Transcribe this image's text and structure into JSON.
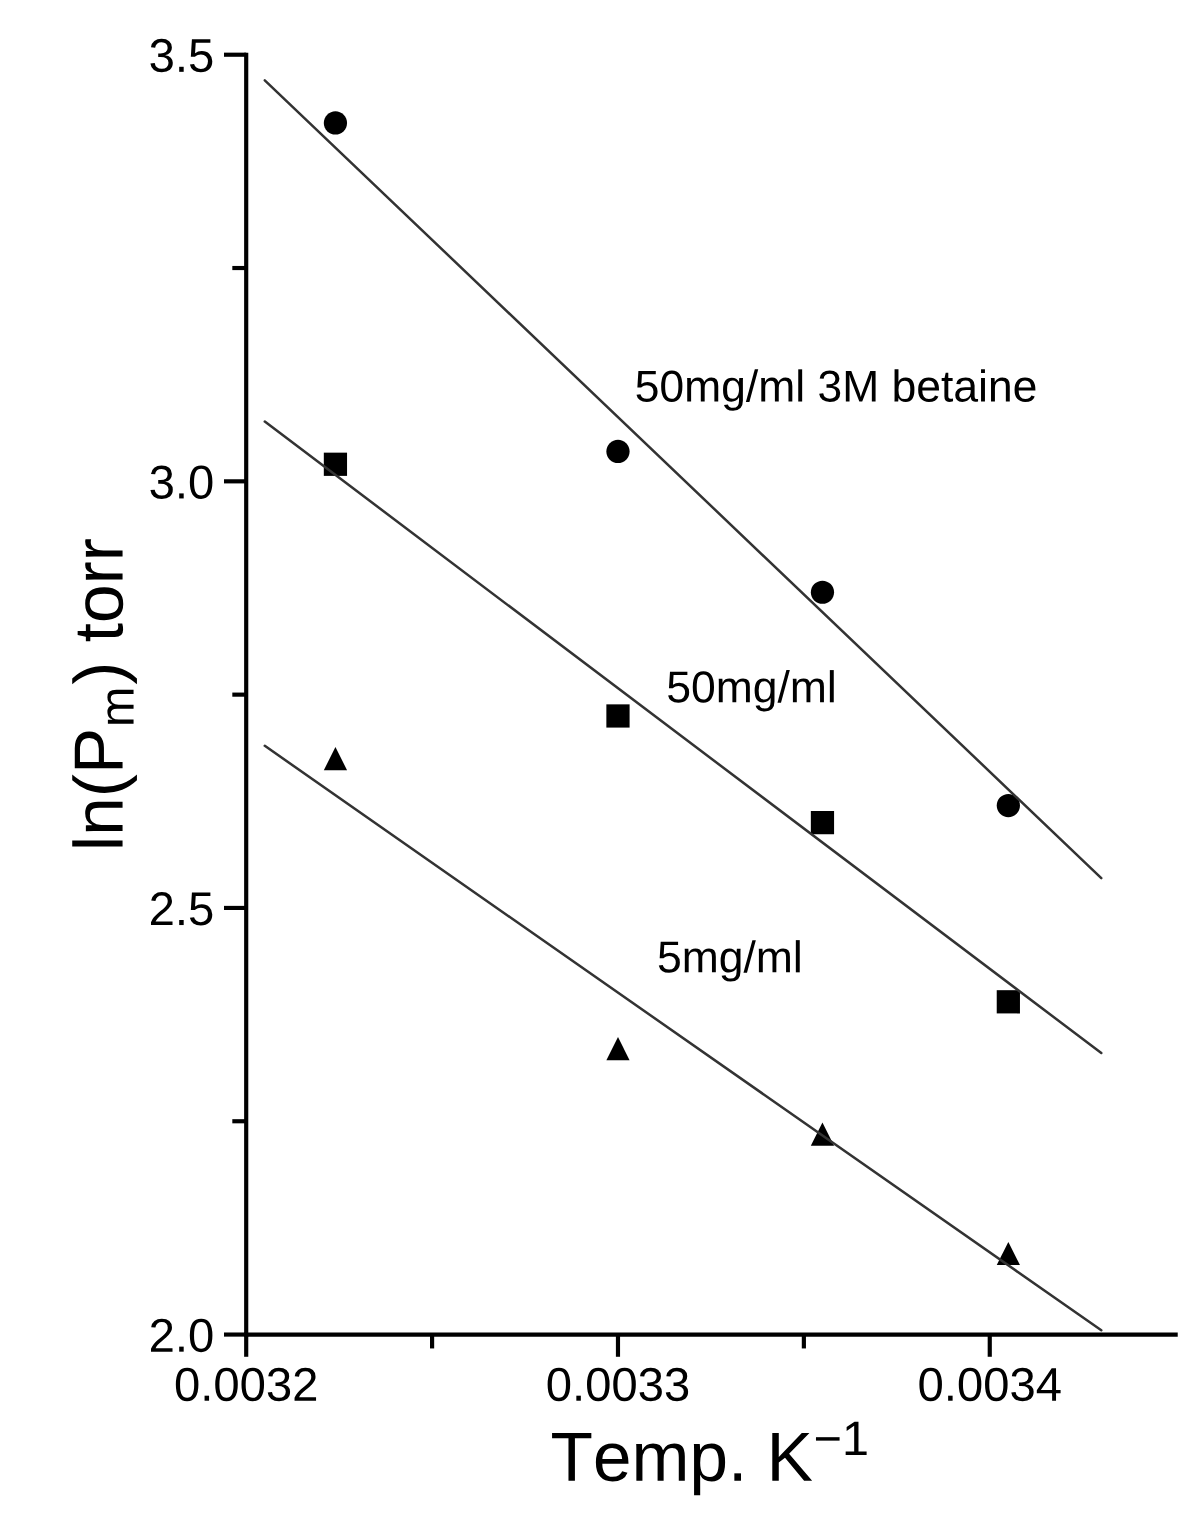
{
  "chart_data": {
    "type": "scatter",
    "xlabel": "Temp. K$^{−1}$",
    "ylabel": "ln(P$_{m}$) torr",
    "xlim": [
      0.0032,
      0.00345
    ],
    "ylim": [
      2.0,
      3.5
    ],
    "xticks": [
      0.0032,
      {
        "value": 0.00325,
        "label": null
      },
      0.0033,
      {
        "value": 0.00335,
        "label": null
      },
      0.0034
    ],
    "yticks": [
      {
        "value": 2.0,
        "label": "2.0"
      },
      {
        "value": 2.25,
        "label": null
      },
      {
        "value": 2.5,
        "label": "2.5"
      },
      {
        "value": 2.75,
        "label": null
      },
      {
        "value": 3.0,
        "label": "3.0"
      },
      {
        "value": 3.25,
        "label": null
      },
      {
        "value": 3.5,
        "label": "3.5"
      }
    ],
    "grid": false,
    "legend": false,
    "series": [
      {
        "marker": "circle",
        "color": "#000000",
        "x": [
          0.003224,
          0.0033,
          0.003355,
          0.003405
        ],
        "values": [
          3.42,
          3.035,
          2.87,
          2.62
        ]
      },
      {
        "marker": "square",
        "color": "#000000",
        "x": [
          0.003224,
          0.0033,
          0.003355,
          0.003405
        ],
        "values": [
          3.02,
          2.725,
          2.6,
          2.39
        ]
      },
      {
        "marker": "triangle",
        "color": "#000000",
        "x": [
          0.003224,
          0.0033,
          0.003355,
          0.003405
        ],
        "values": [
          2.675,
          2.335,
          2.235,
          2.095
        ]
      },
      {
        "type": "line",
        "marker": "none",
        "line_style": "solid",
        "color": "#333333",
        "x": [
          0.003205,
          0.00343
        ],
        "values": [
          3.47,
          2.535
        ]
      },
      {
        "type": "line",
        "marker": "none",
        "line_style": "solid",
        "color": "#333333",
        "x": [
          0.003205,
          0.00343
        ],
        "values": [
          3.07,
          2.33
        ]
      },
      {
        "type": "line",
        "marker": "none",
        "line_style": "solid",
        "color": "#333333",
        "x": [
          0.003205,
          0.00343
        ],
        "values": [
          2.69,
          2.005
        ]
      }
    ],
    "annotations": [
      "50mg/ml 3M betaine",
      "50mg/ml",
      "5mg/ml"
    ]
  }
}
